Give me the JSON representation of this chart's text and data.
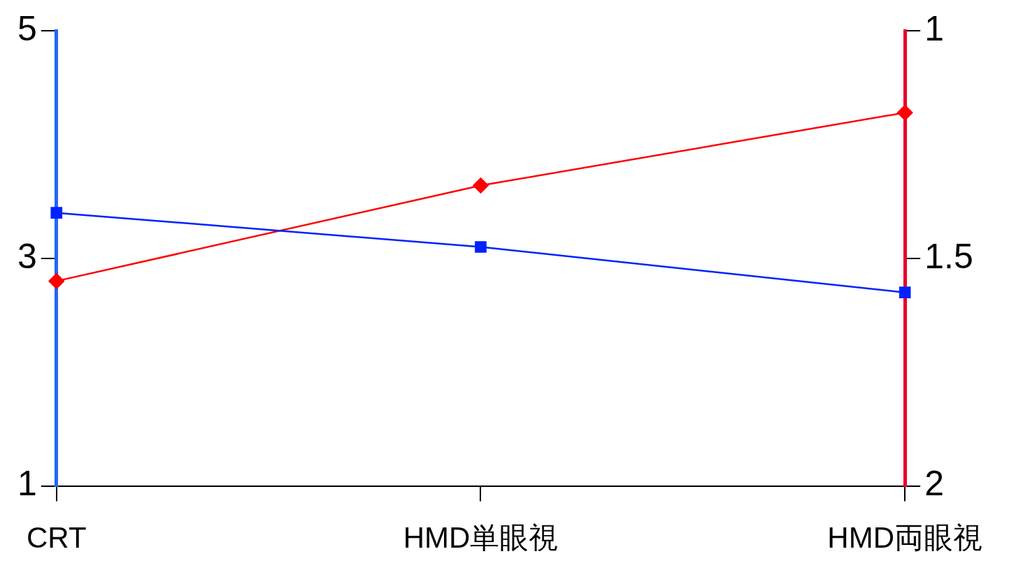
{
  "chart_data": {
    "type": "line",
    "categories": [
      "CRT",
      "HMD単眼視",
      "HMD両眼視"
    ],
    "series": [
      {
        "color": "#0022ff",
        "values": [
          3.4,
          3.1,
          2.7
        ],
        "marker": "square"
      },
      {
        "color": "#ff0000",
        "values": [
          1.55,
          1.34,
          1.18
        ],
        "marker": "diamond",
        "axis": "y2"
      }
    ],
    "ylim": [
      1,
      5
    ],
    "yticks": [
      1,
      3,
      5
    ],
    "y2lim": [
      2,
      1
    ],
    "y2ticks": [
      1,
      1.5,
      2
    ],
    "grid": false,
    "legend": false
  }
}
